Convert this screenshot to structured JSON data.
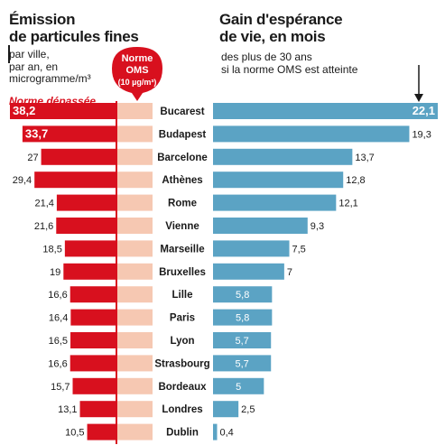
{
  "left_panel": {
    "title_line1": "Émission",
    "title_line2": "de particules fines",
    "subtitle_line1": "par ville,",
    "subtitle_line2": "par an, en",
    "subtitle_line3": "microgramme/m³",
    "exceeded_label": "Norme dépassée"
  },
  "right_panel": {
    "title_line1": "Gain d'espérance",
    "title_line2": "de vie, en mois",
    "subtitle_line1": "des plus de 30 ans",
    "subtitle_line2": "si la norme OMS est atteinte"
  },
  "oms_bubble": {
    "line1": "Norme",
    "line2": "OMS",
    "line3": "(10 µg/m³)"
  },
  "colors": {
    "emission": "#d8101e",
    "norme": "#f6c8b2",
    "gain": "#5ba3c4",
    "divider": "#d8101e"
  },
  "chart_data": [
    {
      "type": "bar",
      "title": "Émission de particules fines",
      "categories": [
        "Bucarest",
        "Budapest",
        "Barcelone",
        "Athènes",
        "Rome",
        "Vienne",
        "Marseille",
        "Bruxelles",
        "Lille",
        "Paris",
        "Lyon",
        "Strasbourg",
        "Bordeaux",
        "Londres",
        "Dublin"
      ],
      "values": [
        38.2,
        33.7,
        27,
        29.4,
        21.4,
        21.6,
        18.5,
        19,
        16.6,
        16.4,
        16.5,
        16.6,
        15.7,
        13.1,
        10.5
      ],
      "value_labels": [
        "38,2",
        "33,7",
        "27",
        "29,4",
        "21,4",
        "21,6",
        "18,5",
        "19",
        "16,6",
        "16,4",
        "16,5",
        "16,6",
        "15,7",
        "13,1",
        "10,5"
      ],
      "reference": 10,
      "orientation": "horizontal-leftward"
    },
    {
      "type": "bar",
      "title": "Gain d'espérance de vie, en mois",
      "categories": [
        "Bucarest",
        "Budapest",
        "Barcelone",
        "Athènes",
        "Rome",
        "Vienne",
        "Marseille",
        "Bruxelles",
        "Lille",
        "Paris",
        "Lyon",
        "Strasbourg",
        "Bordeaux",
        "Londres",
        "Dublin"
      ],
      "values": [
        22.1,
        19.3,
        13.7,
        12.8,
        12.1,
        9.3,
        7.5,
        7,
        5.8,
        5.8,
        5.7,
        5.7,
        5,
        2.5,
        0.4
      ],
      "value_labels": [
        "22,1",
        "19,3",
        "13,7",
        "12,8",
        "12,1",
        "9,3",
        "7,5",
        "7",
        "5,8",
        "5,8",
        "5,7",
        "5,7",
        "5",
        "2,5",
        "0,4"
      ],
      "orientation": "horizontal-rightward"
    }
  ]
}
